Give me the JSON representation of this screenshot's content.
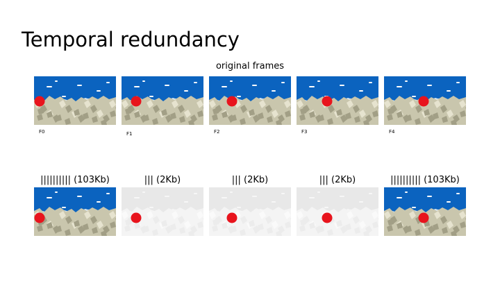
{
  "slide": {
    "title": "Temporal redundancy",
    "subtitle": "original frames"
  },
  "colors": {
    "sky": "#0b63bf",
    "ball": "#e8141d",
    "rock": "#c9c6ad",
    "diff_bg": "#e8e8e8",
    "text": "#000000"
  },
  "original_frames": [
    {
      "label": "F0",
      "ball_offset": 0.05
    },
    {
      "label": "F1",
      "ball_offset": 0.16
    },
    {
      "label": "F2",
      "ball_offset": 0.26
    },
    {
      "label": "F3",
      "ball_offset": 0.36
    },
    {
      "label": "F4",
      "ball_offset": 0.47
    }
  ],
  "encoded_frames": [
    {
      "size_label": "|||||||||| (103Kb)",
      "type": "full",
      "ball_offset": 0.05
    },
    {
      "size_label": "||| (2Kb)",
      "type": "diff",
      "ball_offset": 0.16
    },
    {
      "size_label": "||| (2Kb)",
      "type": "diff",
      "ball_offset": 0.26
    },
    {
      "size_label": "||| (2Kb)",
      "type": "diff",
      "ball_offset": 0.36
    },
    {
      "size_label": "|||||||||| (103Kb)",
      "type": "full",
      "ball_offset": 0.47
    }
  ]
}
